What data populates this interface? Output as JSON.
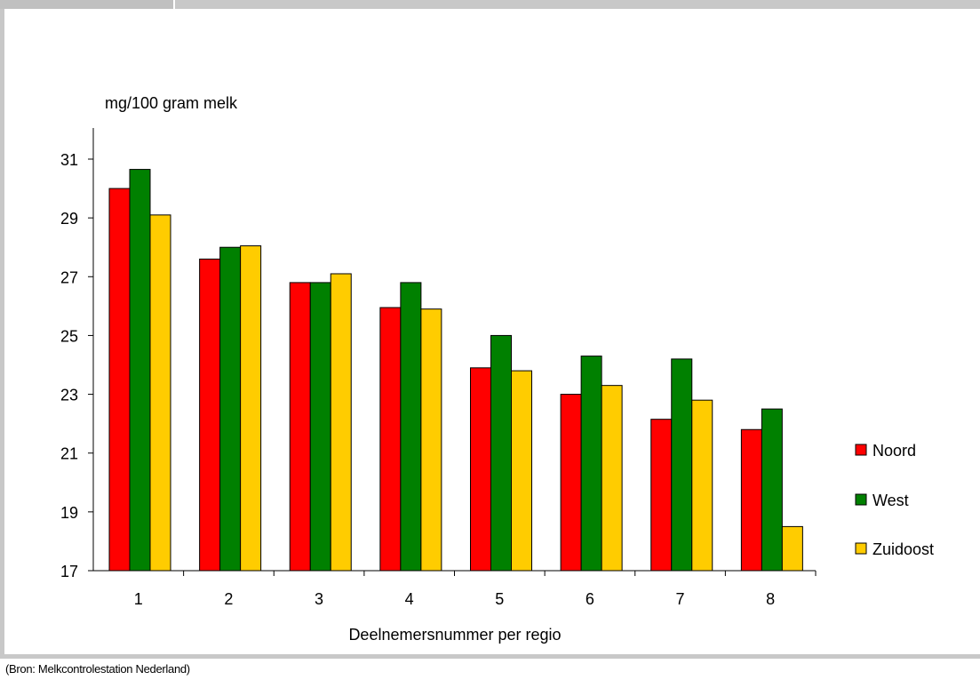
{
  "chart_data": {
    "type": "bar",
    "ylabel": "mg/100 gram melk",
    "xlabel": "Deelnemersnummer per regio",
    "categories": [
      "1",
      "2",
      "3",
      "4",
      "5",
      "6",
      "7",
      "8"
    ],
    "ylim": [
      17,
      32
    ],
    "yticks": [
      17,
      19,
      21,
      23,
      25,
      27,
      29,
      31
    ],
    "legend_position": "right",
    "grid": false,
    "series": [
      {
        "name": "Noord",
        "color": "#ff0000",
        "values": [
          30.0,
          27.6,
          26.8,
          25.95,
          23.9,
          23.0,
          22.15,
          21.8
        ]
      },
      {
        "name": "West",
        "color": "#008000",
        "values": [
          30.65,
          28.0,
          26.8,
          26.8,
          25.0,
          24.3,
          24.2,
          22.5
        ]
      },
      {
        "name": "Zuidoost",
        "color": "#ffcc00",
        "values": [
          29.1,
          28.05,
          27.1,
          25.9,
          23.8,
          23.3,
          22.8,
          18.5
        ]
      }
    ]
  },
  "source": "(Bron: Melkcontrolestation Nederland)"
}
